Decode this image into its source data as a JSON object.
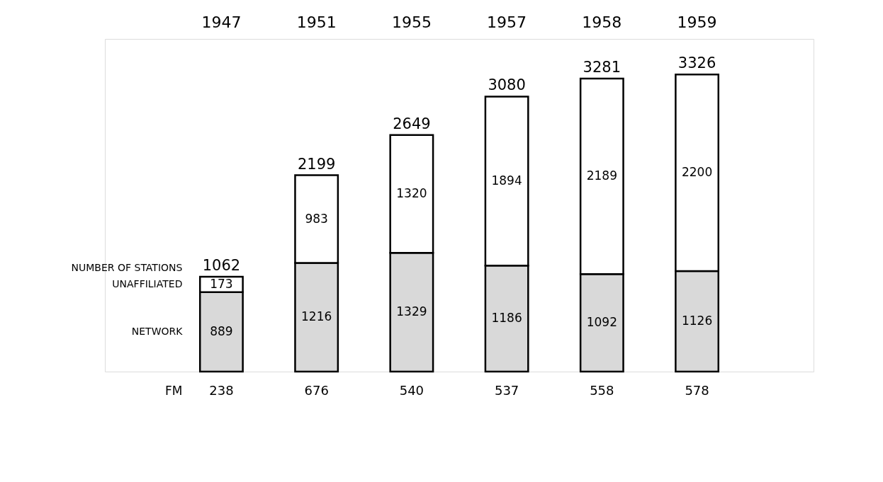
{
  "chart_data": {
    "type": "bar",
    "stacked": true,
    "data_labels": true,
    "categories": [
      "1947",
      "1951",
      "1955",
      "1957",
      "1958",
      "1959"
    ],
    "series": [
      {
        "name": "NETWORK",
        "color": "#d9d9d9",
        "values": [
          889,
          1216,
          1329,
          1186,
          1092,
          1126
        ]
      },
      {
        "name": "UNAFFILIATED",
        "color": "#ffffff",
        "values": [
          173,
          983,
          1320,
          1894,
          2189,
          2200
        ]
      }
    ],
    "totals": [
      "1062",
      "2199",
      "2649",
      "3080",
      "3281",
      "3326"
    ],
    "annotations": [
      "NUMBER OF STATIONS",
      "FM",
      "238",
      "676",
      "540",
      "537",
      "558",
      "578"
    ]
  }
}
